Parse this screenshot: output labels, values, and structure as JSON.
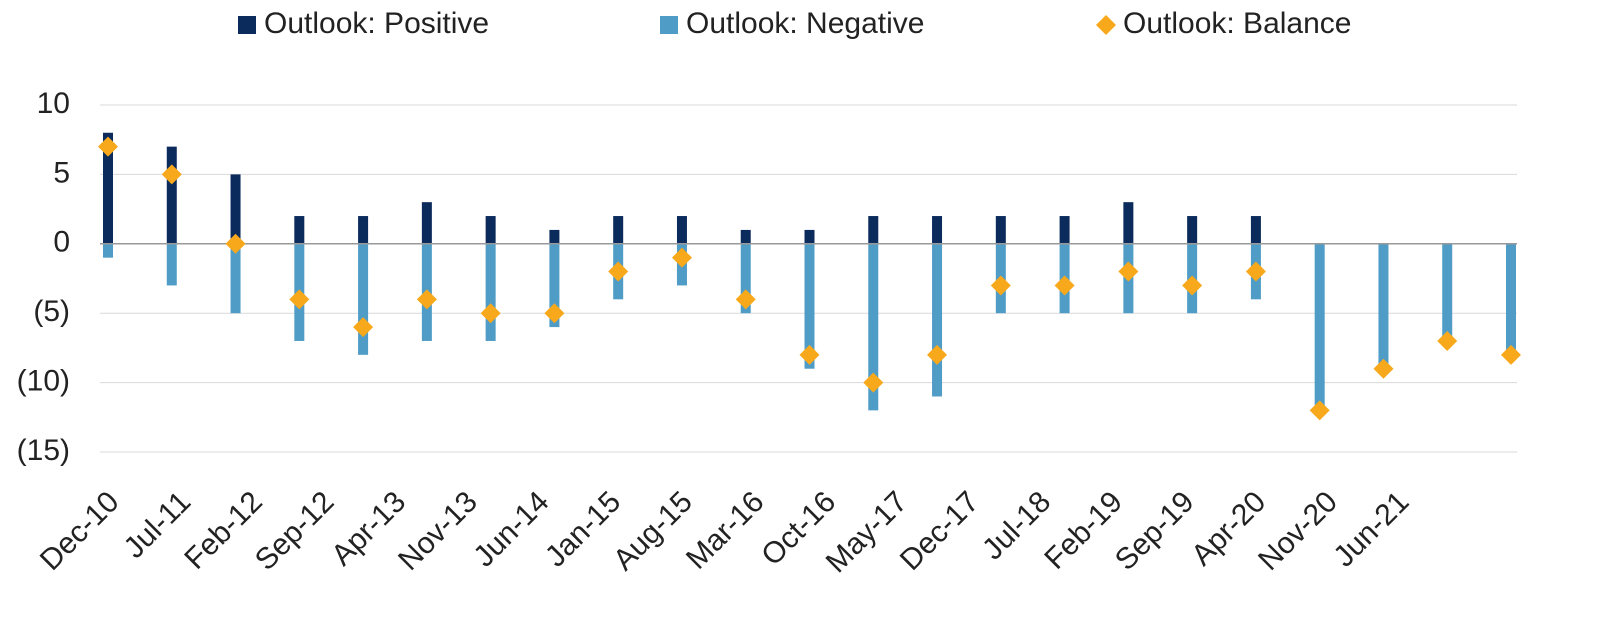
{
  "chart_data": {
    "type": "bar",
    "categories": [
      null,
      null,
      null,
      null,
      null,
      null,
      null,
      null,
      null,
      null,
      null,
      null,
      null,
      null,
      null,
      null,
      null,
      null,
      null,
      null,
      null,
      null,
      null
    ],
    "xtick_labels": [
      "Dec-10",
      "Jul-11",
      "Feb-12",
      "Sep-12",
      "Apr-13",
      "Nov-13",
      "Jun-14",
      "Jan-15",
      "Aug-15",
      "Mar-16",
      "Oct-16",
      "May-17",
      "Dec-17",
      "Jul-18",
      "Feb-19",
      "Sep-19",
      "Apr-20",
      "Nov-20",
      "Jun-21"
    ],
    "series": [
      {
        "name": "Outlook: Positive",
        "color": "#0b2b5c",
        "values": [
          8,
          7,
          5,
          2,
          2,
          3,
          2,
          1,
          2,
          2,
          1,
          1,
          2,
          2,
          2,
          2,
          3,
          2,
          2,
          0,
          0,
          0,
          0
        ]
      },
      {
        "name": "Outlook: Negative",
        "color": "#4f9cc6",
        "values": [
          -1,
          -3,
          -5,
          -7,
          -8,
          -7,
          -7,
          -6,
          -4,
          -3,
          -5,
          -9,
          -12,
          -11,
          -5,
          -5,
          -5,
          -5,
          -4,
          -12,
          -9,
          -7,
          -8
        ]
      },
      {
        "name": "Outlook: Balance",
        "color": "#f7a81b",
        "marker": "diamond",
        "values": [
          7,
          5,
          0,
          -4,
          -6,
          -4,
          -5,
          -5,
          -2,
          -1,
          -4,
          -8,
          -10,
          -8,
          -3,
          -3,
          -2,
          -3,
          -2,
          -12,
          -9,
          -7,
          -8
        ]
      }
    ],
    "ylim": [
      -15,
      10
    ],
    "yticks": [
      {
        "value": -15,
        "label": "(15)"
      },
      {
        "value": -10,
        "label": "(10)"
      },
      {
        "value": -5,
        "label": "(5)"
      },
      0,
      5,
      10
    ],
    "grid": true,
    "legend": "top"
  }
}
